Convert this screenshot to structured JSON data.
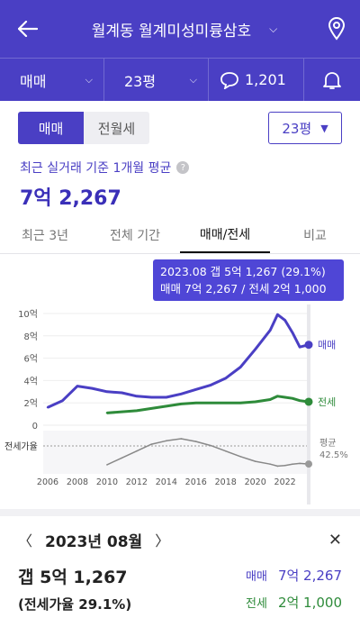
{
  "header": {
    "title": "월계동 월계미성미륭삼호",
    "back_icon": "back-arrow-icon",
    "location_icon": "map-pin-icon"
  },
  "filters": {
    "deal_type": "매매",
    "size": "23평",
    "comment_count": "1,201"
  },
  "toggle": {
    "sale": "매매",
    "jeonse_monthly": "전월세"
  },
  "size_select": "23평",
  "summary": {
    "label": "최근 실거래 기준 1개월 평균",
    "help": "?",
    "value": "7억 2,267"
  },
  "tabs": [
    "최근 3년",
    "전체 기간",
    "매매/전세",
    "비교"
  ],
  "active_tab": 2,
  "tooltip": {
    "line1": "2023.08  갭 5억 1,267 (29.1%)",
    "line2": "매매 7억 2,267 / 전세 2억 1,000"
  },
  "chart_labels": {
    "y_ticks": [
      "10억",
      "8억",
      "6억",
      "4억",
      "2억",
      "0"
    ],
    "x_ticks": [
      "2006",
      "2008",
      "2010",
      "2012",
      "2014",
      "2016",
      "2018",
      "2020",
      "2022"
    ],
    "sale": "매매",
    "jeonse": "전세",
    "ratio_axis": "전세가율",
    "ratio_avg": "평균",
    "ratio_avg_value": "42.5%"
  },
  "chart_data": {
    "type": "line",
    "x": [
      2006,
      2007,
      2008,
      2009,
      2010,
      2011,
      2012,
      2013,
      2014,
      2015,
      2016,
      2017,
      2018,
      2019,
      2020,
      2021,
      2021.5,
      2022,
      2022.5,
      2023,
      2023.6
    ],
    "series": [
      {
        "name": "매매",
        "color": "#4a3fc4",
        "values": [
          1.6,
          2.2,
          3.5,
          3.3,
          3.0,
          2.9,
          2.6,
          2.5,
          2.5,
          2.8,
          3.2,
          3.6,
          4.2,
          5.2,
          6.8,
          8.5,
          9.9,
          9.4,
          8.3,
          7.0,
          7.2
        ]
      },
      {
        "name": "전세",
        "color": "#2e8b3a",
        "values": [
          null,
          null,
          null,
          null,
          1.1,
          1.2,
          1.3,
          1.5,
          1.7,
          1.9,
          2.0,
          2.0,
          2.0,
          2.0,
          2.1,
          2.3,
          2.6,
          2.5,
          2.4,
          2.2,
          2.1
        ]
      },
      {
        "name": "전세가율",
        "color": "#888888",
        "values": [
          null,
          null,
          null,
          null,
          28,
          38,
          48,
          58,
          63,
          66,
          62,
          56,
          48,
          40,
          33,
          29,
          26,
          27,
          29,
          30,
          29.1
        ]
      }
    ],
    "ylim": [
      0,
      10
    ],
    "y_unit": "억",
    "ratio_avg": 42.5
  },
  "detail": {
    "month": "2023년 08월",
    "gap": "갭 5억 1,267",
    "ratio": "(전세가율 29.1%)",
    "sale_label": "매매",
    "sale_value": "7억 2,267",
    "jeonse_label": "전세",
    "jeonse_value": "2억 1,000"
  }
}
